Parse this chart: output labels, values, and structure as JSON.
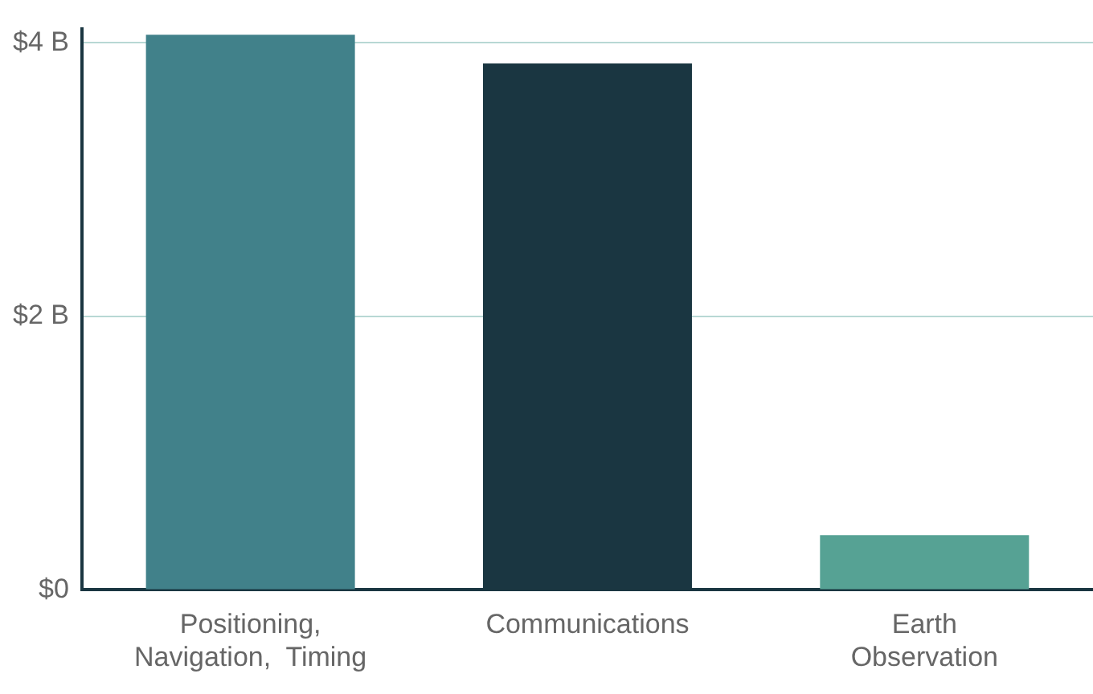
{
  "chart_data": {
    "type": "bar",
    "categories": [
      "Positioning,\nNavigation,  Timing",
      "Communications",
      "Earth\nObservation"
    ],
    "values": [
      4.06,
      3.85,
      0.4
    ],
    "colors": [
      "#41818a",
      "#1a3641",
      "#56a294"
    ],
    "ylim": [
      0,
      4.1
    ],
    "yticks": [
      {
        "value": 0,
        "label": "$0"
      },
      {
        "value": 2,
        "label": "$2 B"
      },
      {
        "value": 4,
        "label": "$4 B"
      }
    ],
    "grid": "y",
    "legend": false
  }
}
